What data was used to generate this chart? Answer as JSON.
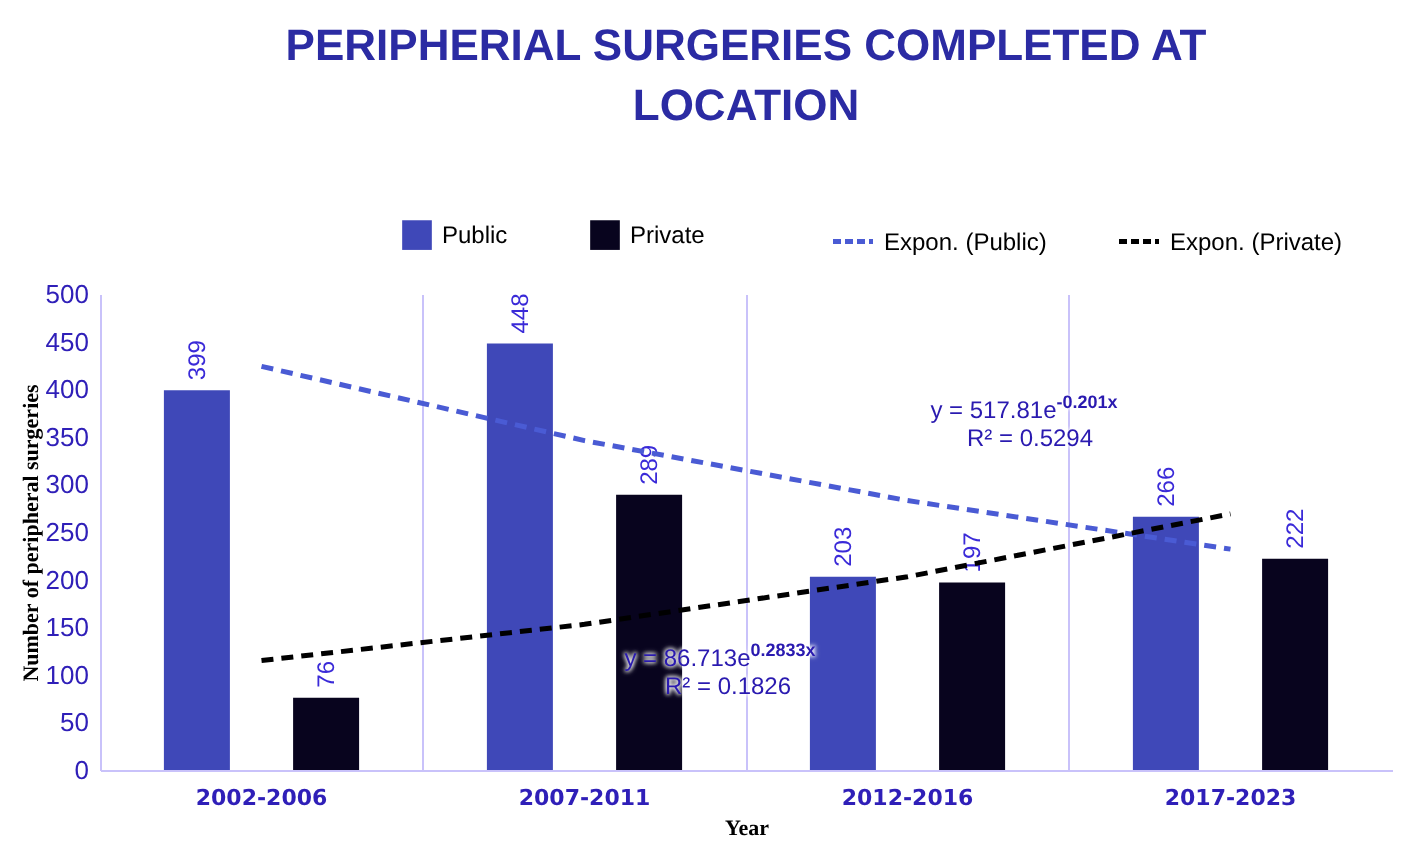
{
  "chart_data": {
    "type": "bar",
    "title": "PERIPHERIAL SURGERIES COMPLETED AT LOCATION",
    "xlabel": "Year",
    "ylabel": "Number of peripheral surgeries",
    "categories": [
      "2002-2006",
      "2007-2011",
      "2012-2016",
      "2017-2023"
    ],
    "series": [
      {
        "name": "Public",
        "color": "#3f48b8",
        "values": [
          399,
          448,
          203,
          266
        ],
        "value_labels": [
          "399",
          "448",
          "203",
          "266"
        ]
      },
      {
        "name": "Private",
        "color": "#08041e",
        "values": [
          76,
          289,
          197,
          222
        ],
        "value_labels": [
          "76",
          "289",
          "197",
          "222"
        ]
      },
      {
        "name": "Expon. (Public)",
        "type": "line",
        "line_style": "dashed",
        "color": "#4a5bd4",
        "x": [
          "2002-2006",
          "2007-2011",
          "2012-2016",
          "2017-2023"
        ],
        "values": [
          424,
          346,
          283,
          232
        ]
      },
      {
        "name": "Expon. (Private)",
        "type": "line",
        "line_style": "dashed",
        "color": "#000000",
        "x": [
          "2002-2006",
          "2007-2011",
          "2012-2016",
          "2017-2023"
        ],
        "values": [
          115,
          153,
          203,
          269
        ]
      }
    ],
    "ylim": [
      0,
      500
    ],
    "yticks": [
      0,
      50,
      100,
      150,
      200,
      250,
      300,
      350,
      400,
      450,
      500
    ],
    "grid": "x",
    "legend": "top",
    "annotations": [
      "y = 517.81e$^{-0.201x}$",
      "R² = 0.5294",
      "y = 86.713e$^{0.2833x}$",
      "R² = 0.1826"
    ]
  }
}
